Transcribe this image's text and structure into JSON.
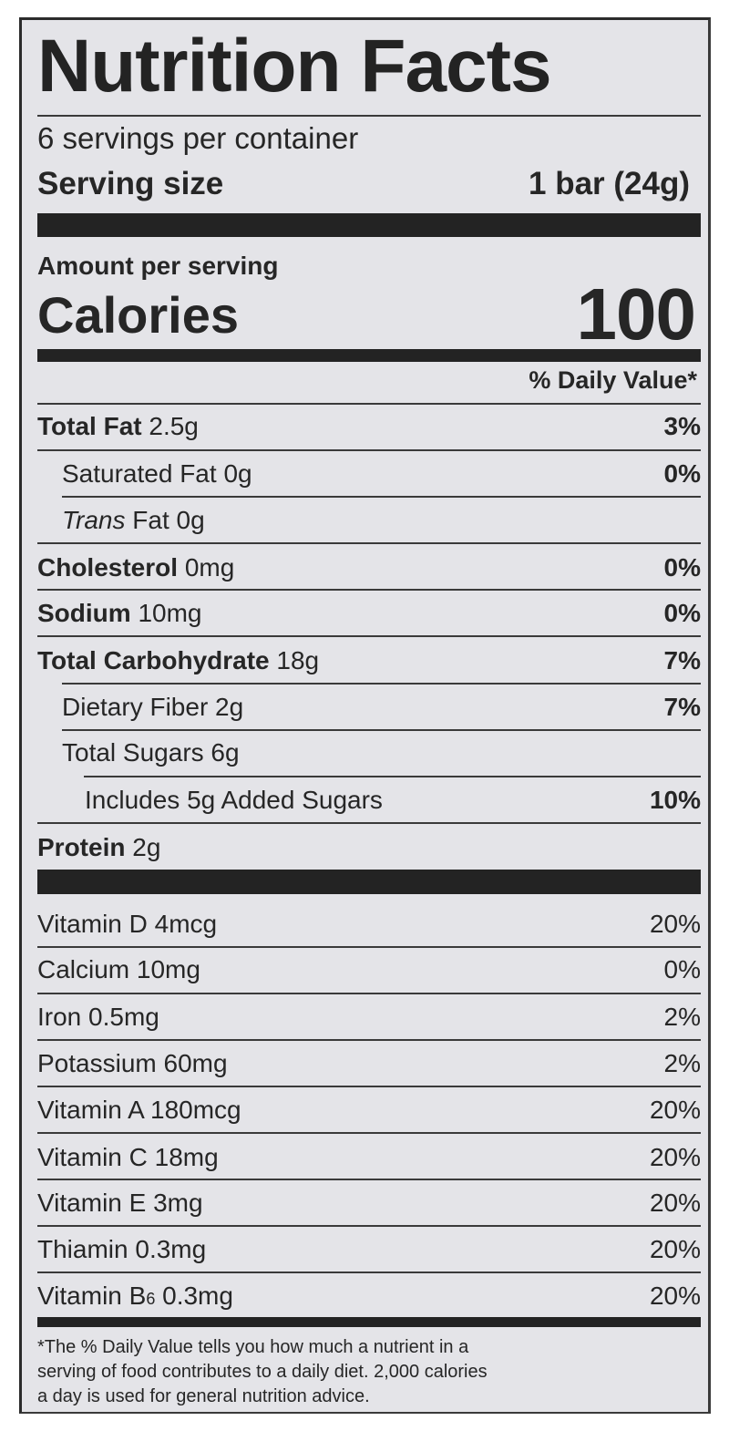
{
  "label": {
    "title": "Nutrition Facts",
    "servings": "6 servings per container",
    "serving_size_label": "Serving size",
    "serving_size_value": "1 bar (24g)",
    "amount_per_serving": "Amount per serving",
    "calories_label": "Calories",
    "calories_value": "100",
    "daily_value_header": "% Daily Value*"
  },
  "nutrients": [
    {
      "name": "Total Fat",
      "amount": "2.5g",
      "dv": "3%"
    },
    {
      "name": "Saturated Fat",
      "amount": "0g",
      "dv": "0%"
    },
    {
      "name_italic": "Trans",
      "name": "Fat",
      "amount": "0g",
      "dv": ""
    },
    {
      "name": "Cholesterol",
      "amount": "0mg",
      "dv": "0%"
    },
    {
      "name": "Sodium",
      "amount": "10mg",
      "dv": "0%"
    },
    {
      "name": "Total Carbohydrate",
      "amount": "18g",
      "dv": "7%"
    },
    {
      "name": "Dietary Fiber",
      "amount": "2g",
      "dv": "7%"
    },
    {
      "name": "Total Sugars",
      "amount": "6g",
      "dv": ""
    },
    {
      "name": "Includes 5g Added Sugars",
      "amount": "",
      "dv": "10%"
    },
    {
      "name": "Protein",
      "amount": "2g",
      "dv": ""
    }
  ],
  "vitamins": [
    {
      "name": "Vitamin D 4mcg",
      "dv": "20%"
    },
    {
      "name": "Calcium 10mg",
      "dv": "0%"
    },
    {
      "name": "Iron 0.5mg",
      "dv": "2%"
    },
    {
      "name": "Potassium 60mg",
      "dv": "2%"
    },
    {
      "name": "Vitamin A 180mcg",
      "dv": "20%"
    },
    {
      "name": "Vitamin C 18mg",
      "dv": "20%"
    },
    {
      "name": "Vitamin E 3mg",
      "dv": "20%"
    },
    {
      "name": "Thiamin 0.3mg",
      "dv": "20%"
    },
    {
      "name_prefix": "Vitamin B",
      "name_sub": "6",
      "name_suffix": "0.3mg",
      "dv": "20%"
    }
  ],
  "footnote": [
    "*The % Daily Value tells you how much a nutrient in a",
    "serving of food contributes to a daily diet. 2,000 calories",
    "a day is used for general nutrition advice."
  ]
}
